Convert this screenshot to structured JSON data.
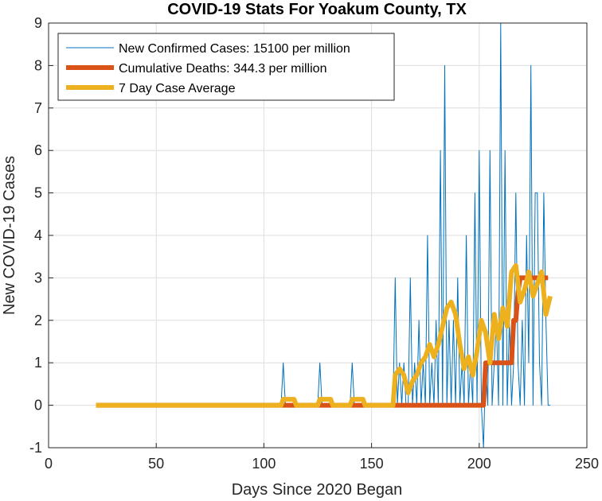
{
  "chart_data": {
    "type": "line",
    "title": "COVID-19 Stats For Yoakum County, TX",
    "xlabel": "Days Since 2020 Began",
    "ylabel": "New COVID-19 Cases",
    "xlim": [
      0,
      250
    ],
    "ylim": [
      -1,
      9
    ],
    "xticks": [
      0,
      50,
      100,
      150,
      200,
      250
    ],
    "yticks": [
      -1,
      0,
      1,
      2,
      3,
      4,
      5,
      6,
      7,
      8,
      9
    ],
    "grid": true,
    "legend_position": "top-left",
    "series": [
      {
        "name": "New Confirmed Cases: 15100 per million",
        "color": "#0072BD",
        "width": "thin",
        "x": [
          22,
          108,
          109,
          110,
          125,
          126,
          127,
          140,
          141,
          142,
          160,
          161,
          162,
          163,
          164,
          165,
          166,
          167,
          168,
          169,
          170,
          171,
          172,
          173,
          174,
          175,
          176,
          177,
          178,
          179,
          180,
          181,
          182,
          183,
          184,
          185,
          186,
          187,
          188,
          189,
          190,
          191,
          192,
          193,
          194,
          195,
          196,
          197,
          198,
          199,
          200,
          201,
          202,
          203,
          204,
          205,
          206,
          207,
          208,
          209,
          210,
          211,
          212,
          213,
          214,
          215,
          216,
          217,
          218,
          219,
          220,
          221,
          222,
          223,
          224,
          225,
          226,
          227,
          228,
          229,
          230,
          231,
          232,
          233
        ],
        "y": [
          0,
          0,
          1,
          0,
          0,
          1,
          0,
          0,
          1,
          0,
          0,
          3,
          0,
          1,
          0,
          1,
          0,
          0,
          3,
          0,
          1,
          0,
          2,
          0,
          1,
          0,
          4,
          0,
          1,
          0,
          2,
          0,
          6,
          0,
          8,
          0,
          2,
          0,
          2,
          0,
          3,
          0,
          1,
          0,
          4,
          0,
          1,
          0,
          5,
          0,
          6,
          0,
          -1,
          1,
          0,
          6,
          0,
          1,
          2,
          0,
          9,
          0,
          6,
          0,
          2,
          0,
          1,
          5,
          1,
          0,
          2,
          0,
          4,
          1,
          8,
          0,
          5,
          5,
          1,
          0,
          5,
          2,
          0,
          0
        ]
      },
      {
        "name": "Cumulative Deaths: 344.3 per million",
        "color": "#D95319",
        "width": "thick",
        "x": [
          22,
          160,
          201,
          202,
          203,
          215,
          216,
          217,
          218,
          219,
          232
        ],
        "y": [
          0,
          0,
          0,
          0,
          1,
          1,
          2,
          2,
          2.65,
          3,
          3
        ]
      },
      {
        "name": "7 Day Case Average",
        "color": "#EDB120",
        "width": "thick",
        "x": [
          22,
          108,
          109,
          114,
          115,
          125,
          126,
          131,
          132,
          140,
          141,
          146,
          147,
          160,
          161,
          163,
          165,
          167,
          169,
          171,
          173,
          175,
          177,
          179,
          181,
          183,
          185,
          187,
          189,
          191,
          193,
          195,
          197,
          199,
          201,
          203,
          205,
          207,
          209,
          211,
          213,
          215,
          217,
          219,
          221,
          223,
          225,
          227,
          229,
          231,
          233
        ],
        "y": [
          0,
          0,
          0.14,
          0.14,
          0,
          0,
          0.14,
          0.14,
          0,
          0,
          0.14,
          0.14,
          0,
          0,
          0.71,
          0.86,
          0.71,
          0.29,
          0.57,
          0.71,
          1.0,
          1.14,
          1.43,
          1.14,
          1.43,
          1.86,
          2.29,
          2.43,
          2.14,
          1.43,
          0.86,
          1.14,
          0.71,
          1.29,
          2.0,
          1.71,
          1.0,
          2.14,
          1.57,
          2.29,
          1.86,
          3.14,
          3.29,
          2.43,
          2.71,
          3.14,
          2.57,
          2.86,
          3.14,
          2.14,
          2.57
        ]
      }
    ]
  }
}
